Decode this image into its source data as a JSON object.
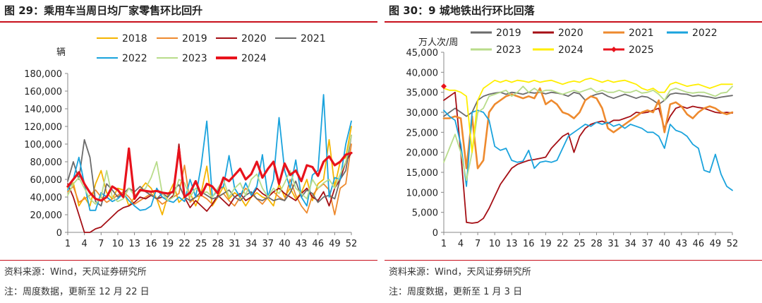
{
  "left": {
    "fig_title": "图 29：乘用车当周日均厂家零售环比回升",
    "source": "资料来源：Wind，天风证券研究所",
    "note": "注：周度数据，更新至 12 月 22 日",
    "colors": {
      "2018": "#f5b400",
      "2019": "#ee8a2e",
      "2020": "#a50f15",
      "2021": "#6b6b6b",
      "2022": "#1aa3dd",
      "2023": "#b8dc8a",
      "2024": "#e8121c"
    },
    "chart_data": {
      "type": "line",
      "ylabel": "辆",
      "ylim": [
        0,
        180000
      ],
      "yticks": [
        0,
        20000,
        40000,
        60000,
        80000,
        100000,
        120000,
        140000,
        160000,
        180000
      ],
      "ytick_labels": [
        "0",
        "20,000",
        "40,000",
        "60,000",
        "80,000",
        "100,000",
        "120,000",
        "140,000",
        "160,000",
        "180,000"
      ],
      "xlim": [
        1,
        52
      ],
      "xticks": [
        1,
        4,
        7,
        10,
        13,
        16,
        19,
        22,
        25,
        28,
        31,
        34,
        37,
        40,
        43,
        46,
        49,
        52
      ],
      "legend_position": "top",
      "series": [
        {
          "name": "2018",
          "values": [
            50000,
            56000,
            30000,
            40000,
            30000,
            55000,
            70000,
            45000,
            38000,
            50000,
            48000,
            30000,
            40000,
            48000,
            56000,
            50000,
            38000,
            20000,
            42000,
            55000,
            34000,
            40000,
            45000,
            30000,
            45000,
            75000,
            30000,
            40000,
            52000,
            38000,
            45000,
            40000,
            30000,
            40000,
            45000,
            40000,
            38000,
            30000,
            55000,
            40000,
            50000,
            38000,
            45000,
            60000,
            36000,
            55000,
            60000,
            105000,
            52000,
            80000,
            85000,
            120000
          ]
        },
        {
          "name": "2019",
          "values": [
            46000,
            52000,
            34000,
            38000,
            42000,
            48000,
            40000,
            34000,
            38000,
            42000,
            46000,
            40000,
            32000,
            36000,
            40000,
            44000,
            38000,
            32000,
            36000,
            40000,
            44000,
            76000,
            34000,
            40000,
            42000,
            38000,
            32000,
            40000,
            44000,
            36000,
            30000,
            40000,
            50000,
            44000,
            38000,
            32000,
            40000,
            46000,
            40000,
            36000,
            60000,
            42000,
            30000,
            22000,
            42000,
            50000,
            55000,
            48000,
            20000,
            50000,
            55000,
            100000
          ]
        },
        {
          "name": "2020",
          "values": [
            55000,
            40000,
            20000,
            0,
            0,
            4000,
            6000,
            12000,
            18000,
            24000,
            28000,
            30000,
            34000,
            40000,
            38000,
            42000,
            38000,
            40000,
            36000,
            42000,
            100000,
            40000,
            28000,
            36000,
            30000,
            24000,
            32000,
            42000,
            36000,
            30000,
            40000,
            44000,
            36000,
            40000,
            50000,
            44000,
            40000,
            46000,
            50000,
            44000,
            40000,
            36000,
            44000,
            50000,
            40000,
            36000,
            46000,
            30000,
            50000,
            60000,
            80000,
            90000
          ]
        },
        {
          "name": "2021",
          "values": [
            58000,
            80000,
            60000,
            105000,
            85000,
            35000,
            30000,
            55000,
            48000,
            40000,
            44000,
            50000,
            46000,
            52000,
            46000,
            42000,
            38000,
            44000,
            40000,
            48000,
            54000,
            40000,
            36000,
            40000,
            46000,
            42000,
            38000,
            40000,
            44000,
            48000,
            40000,
            36000,
            42000,
            46000,
            38000,
            36000,
            40000,
            36000,
            38000,
            36000,
            45000,
            58000,
            40000,
            48000,
            44000,
            34000,
            40000,
            42000,
            38000,
            60000,
            70000,
            110000
          ]
        },
        {
          "name": "2022",
          "values": [
            48000,
            60000,
            85000,
            55000,
            25000,
            25000,
            45000,
            40000,
            35000,
            38000,
            44000,
            36000,
            30000,
            25000,
            26000,
            30000,
            50000,
            40000,
            36000,
            34000,
            40000,
            35000,
            60000,
            40000,
            76000,
            126000,
            40000,
            48000,
            52000,
            87000,
            50000,
            40000,
            56000,
            42000,
            52000,
            88000,
            40000,
            60000,
            130000,
            70000,
            50000,
            82000,
            40000,
            30000,
            65000,
            70000,
            156000,
            40000,
            62000,
            60000,
            100000,
            126000
          ]
        },
        {
          "name": "2023",
          "values": [
            42000,
            55000,
            62000,
            50000,
            38000,
            32000,
            40000,
            70000,
            40000,
            35000,
            38000,
            50000,
            42000,
            46000,
            50000,
            62000,
            80000,
            44000,
            36000,
            40000,
            60000,
            56000,
            40000,
            50000,
            44000,
            46000,
            40000,
            50000,
            60000,
            40000,
            50000,
            56000,
            42000,
            60000,
            66000,
            50000,
            40000,
            50000,
            44000,
            56000,
            70000,
            50000,
            44000,
            38000,
            60000,
            50000,
            56000,
            60000,
            50000,
            66000,
            80000,
            110000
          ]
        },
        {
          "name": "2024",
          "values": [
            52000,
            60000,
            68000,
            55000,
            45000,
            38000,
            36000,
            40000,
            52000,
            48000,
            40000,
            95000,
            38000,
            48000,
            47000,
            46000,
            47000,
            45000,
            44000,
            46000,
            95000,
            40000,
            45000,
            58000,
            42000,
            55000,
            52000,
            44000,
            62000,
            58000,
            65000,
            72000,
            60000,
            66000,
            80000,
            62000,
            72000,
            80000,
            55000,
            78000,
            65000,
            70000,
            58000,
            76000,
            74000,
            64000,
            80000,
            86000,
            76000,
            80000,
            88000,
            90000
          ]
        }
      ]
    }
  },
  "right": {
    "fig_title": "图 30：9 城地铁出行环比回落",
    "source": "资料来源：Wind，天风证券研究所",
    "note": "注：周度数据，更新至 1 月 3 日",
    "colors": {
      "2019": "#6b6b6b",
      "2020": "#a50f15",
      "2021": "#ee8a2e",
      "2022": "#1aa3dd",
      "2023": "#b8dc8a",
      "2024": "#ffee00",
      "2025": "#e8121c"
    },
    "chart_data": {
      "type": "line",
      "ylabel": "万人次/周",
      "ylim": [
        0,
        45000
      ],
      "yticks": [
        0,
        5000,
        10000,
        15000,
        20000,
        25000,
        30000,
        35000,
        40000,
        45000
      ],
      "ytick_labels": [
        "0",
        "5,000",
        "10,000",
        "15,000",
        "20,000",
        "25,000",
        "30,000",
        "35,000",
        "40,000",
        "45,000"
      ],
      "xlim": [
        1,
        52
      ],
      "xticks": [
        1,
        4,
        7,
        10,
        13,
        16,
        19,
        22,
        25,
        28,
        31,
        34,
        37,
        40,
        43,
        46,
        49,
        52
      ],
      "legend_position": "top",
      "series": [
        {
          "name": "2019",
          "values": [
            29000,
            30000,
            31000,
            30000,
            29000,
            30000,
            33000,
            34000,
            34500,
            34800,
            35000,
            34500,
            35000,
            34800,
            34500,
            35000,
            34800,
            35000,
            34600,
            35000,
            34800,
            34500,
            34000,
            35000,
            34600,
            33000,
            34000,
            34500,
            34800,
            34000,
            33500,
            34000,
            34500,
            34000,
            33500,
            34000,
            33800,
            33000,
            32000,
            33000,
            34500,
            34800,
            34600,
            34500,
            34000,
            34200,
            34000,
            33800,
            33500,
            33800,
            34000,
            34200
          ]
        },
        {
          "name": "2020",
          "values": [
            33000,
            34000,
            35000,
            20000,
            2500,
            2300,
            2500,
            3500,
            6000,
            9000,
            12000,
            14000,
            16000,
            17000,
            17500,
            18000,
            18200,
            18500,
            18800,
            21000,
            22500,
            24000,
            24800,
            20000,
            24000,
            26000,
            27000,
            27500,
            27800,
            27200,
            28000,
            28000,
            28500,
            29000,
            30000,
            29800,
            30000,
            30500,
            31000,
            26000,
            29000,
            31000,
            31500,
            31000,
            31500,
            31200,
            31000,
            30500,
            30000,
            29800,
            30000,
            29800
          ]
        },
        {
          "name": "2021",
          "values": [
            28500,
            28500,
            29000,
            28500,
            16000,
            29000,
            16000,
            18000,
            30000,
            32000,
            33000,
            34000,
            34500,
            34000,
            33500,
            34000,
            33500,
            36000,
            32000,
            33000,
            32000,
            30000,
            29500,
            28500,
            30000,
            33000,
            34000,
            33500,
            31000,
            26000,
            25000,
            26000,
            27000,
            28000,
            29000,
            30000,
            30500,
            30000,
            33000,
            25000,
            32000,
            32500,
            31500,
            29500,
            28500,
            30000,
            31000,
            31500,
            31000,
            30000,
            29500,
            30000
          ]
        },
        {
          "name": "2022",
          "values": [
            30500,
            29000,
            28000,
            22000,
            11500,
            30000,
            30500,
            30000,
            28000,
            21500,
            20500,
            21000,
            18000,
            17500,
            17800,
            20500,
            16000,
            17500,
            17800,
            17500,
            18000,
            21000,
            24000,
            25000,
            26000,
            27000,
            26500,
            27500,
            27000,
            27500,
            26500,
            27000,
            26000,
            27000,
            26500,
            26000,
            25000,
            25000,
            24000,
            21000,
            27000,
            25500,
            25000,
            24000,
            22000,
            21000,
            15500,
            15000,
            19500,
            14500,
            11500,
            10500
          ]
        },
        {
          "name": "2023",
          "values": [
            17500,
            21000,
            24500,
            20000,
            13000,
            20000,
            30000,
            31000,
            34000,
            34500,
            35000,
            35500,
            34000,
            35000,
            36500,
            35000,
            36000,
            35000,
            35500,
            35500,
            35000,
            34500,
            35000,
            35500,
            35000,
            35500,
            36000,
            35000,
            35500,
            35000,
            35000,
            35500,
            35000,
            35000,
            35500,
            34800,
            35000,
            35500,
            34500,
            33000,
            35500,
            36000,
            35500,
            35000,
            34800,
            35000,
            35000,
            34500,
            34000,
            34800,
            35000,
            36500
          ]
        },
        {
          "name": "2024",
          "values": [
            36000,
            35500,
            35500,
            35000,
            34000,
            20000,
            33000,
            36000,
            37000,
            38000,
            37500,
            38000,
            37500,
            38000,
            37800,
            37500,
            38000,
            37500,
            37800,
            38000,
            37500,
            37000,
            37500,
            37800,
            37500,
            38200,
            38500,
            38000,
            37500,
            38000,
            37500,
            37800,
            38000,
            37500,
            37000,
            36000,
            35500,
            36000,
            35000,
            35000,
            37000,
            37500,
            37000,
            36500,
            36800,
            37000,
            36500,
            36000,
            36500,
            37000,
            37000,
            37000
          ]
        },
        {
          "name": "2025",
          "values": [
            36500
          ]
        }
      ]
    }
  }
}
